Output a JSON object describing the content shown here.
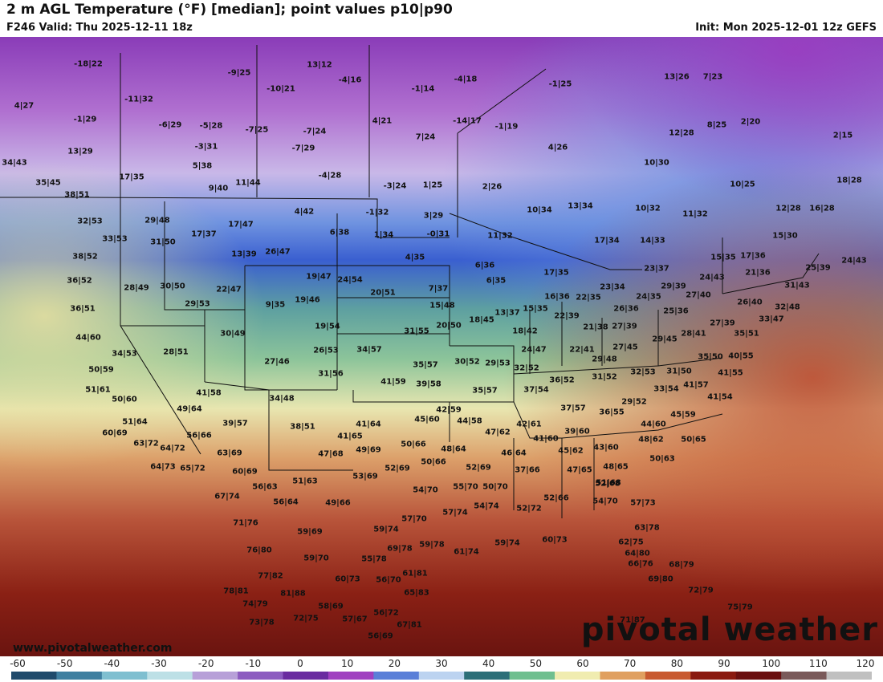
{
  "header": {
    "title": "2 m AGL Temperature (°F) [median]; point values p10|p90",
    "valid": "F246 Valid: Thu 2025-12-11 18z",
    "init": "Init: Mon 2025-12-01 12z GEFS"
  },
  "branding": {
    "site": "www.pivotalweather.com",
    "logo": "pivotal weather"
  },
  "legend": {
    "ticks": [
      "-60",
      "-50",
      "-40",
      "-30",
      "-20",
      "-10",
      "0",
      "10",
      "20",
      "30",
      "40",
      "50",
      "60",
      "70",
      "80",
      "90",
      "100",
      "110",
      "120"
    ],
    "colors": [
      "#1f4a6b",
      "#3f7fa0",
      "#7fbfd0",
      "#bde0e6",
      "#b7a0d8",
      "#8c5cc0",
      "#6a2ca0",
      "#a040c0",
      "#5a7fd8",
      "#bcd3f0",
      "#2c6f78",
      "#6fbf8f",
      "#f0ecb0",
      "#e0a060",
      "#c85a30",
      "#8a1a10",
      "#6a1010",
      "#7a5a5a",
      "#c0c0c0"
    ]
  },
  "points": [
    {
      "label": "-18|22"
    },
    {
      "label": "-9|25"
    },
    {
      "label": "13|12"
    },
    {
      "label": "-4|16"
    },
    {
      "label": "-1|14"
    },
    {
      "label": "-4|18"
    },
    {
      "label": "-1|25"
    },
    {
      "label": "13|26"
    },
    {
      "label": "7|23"
    },
    {
      "label": "4|27"
    },
    {
      "label": "-11|32"
    },
    {
      "label": "-10|21"
    },
    {
      "label": "-1|29"
    },
    {
      "label": "-6|29"
    },
    {
      "label": "-5|28"
    },
    {
      "label": "-7|25"
    },
    {
      "label": "-7|24"
    },
    {
      "label": "4|21"
    },
    {
      "label": "-14|17"
    },
    {
      "label": "-1|19"
    },
    {
      "label": "12|28"
    },
    {
      "label": "8|25"
    },
    {
      "label": "2|20"
    },
    {
      "label": "2|15"
    },
    {
      "label": "13|29"
    },
    {
      "label": "-3|31"
    },
    {
      "label": "-7|29"
    },
    {
      "label": "7|24"
    },
    {
      "label": "4|26"
    },
    {
      "label": "34|43"
    },
    {
      "label": "5|38"
    },
    {
      "label": "10|30"
    },
    {
      "label": "17|35"
    },
    {
      "label": "-4|28"
    },
    {
      "label": "35|45"
    },
    {
      "label": "11|44"
    },
    {
      "label": "9|40"
    },
    {
      "label": "-3|24"
    },
    {
      "label": "1|25"
    },
    {
      "label": "2|26"
    },
    {
      "label": "10|25"
    },
    {
      "label": "18|28"
    },
    {
      "label": "38|51"
    },
    {
      "label": "4|42"
    },
    {
      "label": "-1|32"
    },
    {
      "label": "3|29"
    },
    {
      "label": "10|34"
    },
    {
      "label": "13|34"
    },
    {
      "label": "10|32"
    },
    {
      "label": "11|32"
    },
    {
      "label": "12|28"
    },
    {
      "label": "16|28"
    },
    {
      "label": "32|53"
    },
    {
      "label": "29|48"
    },
    {
      "label": "17|47"
    },
    {
      "label": "6|38"
    },
    {
      "label": "1|34"
    },
    {
      "label": "-0|31"
    },
    {
      "label": "11|32"
    },
    {
      "label": "17|34"
    },
    {
      "label": "14|33"
    },
    {
      "label": "15|30"
    },
    {
      "label": "33|53"
    },
    {
      "label": "31|50"
    },
    {
      "label": "17|37"
    },
    {
      "label": "26|47"
    },
    {
      "label": "13|39"
    },
    {
      "label": "4|35"
    },
    {
      "label": "15|35"
    },
    {
      "label": "17|36"
    },
    {
      "label": "38|52"
    },
    {
      "label": "6|36"
    },
    {
      "label": "23|37"
    },
    {
      "label": "21|36"
    },
    {
      "label": "25|39"
    },
    {
      "label": "24|43"
    },
    {
      "label": "36|52"
    },
    {
      "label": "28|49"
    },
    {
      "label": "30|50"
    },
    {
      "label": "22|47"
    },
    {
      "label": "19|47"
    },
    {
      "label": "24|54"
    },
    {
      "label": "6|35"
    },
    {
      "label": "17|35"
    },
    {
      "label": "23|34"
    },
    {
      "label": "29|39"
    },
    {
      "label": "24|43"
    },
    {
      "label": "31|43"
    },
    {
      "label": "9|35"
    },
    {
      "label": "19|46"
    },
    {
      "label": "20|51"
    },
    {
      "label": "7|37"
    },
    {
      "label": "16|36"
    },
    {
      "label": "22|35"
    },
    {
      "label": "24|35"
    },
    {
      "label": "27|40"
    },
    {
      "label": "26|40"
    },
    {
      "label": "32|48"
    },
    {
      "label": "36|51"
    },
    {
      "label": "29|53"
    },
    {
      "label": "15|48"
    },
    {
      "label": "13|37"
    },
    {
      "label": "15|35"
    },
    {
      "label": "22|39"
    },
    {
      "label": "26|36"
    },
    {
      "label": "25|36"
    },
    {
      "label": "27|39"
    },
    {
      "label": "33|47"
    },
    {
      "label": "44|60"
    },
    {
      "label": "30|49"
    },
    {
      "label": "19|54"
    },
    {
      "label": "31|55"
    },
    {
      "label": "20|50"
    },
    {
      "label": "18|45"
    },
    {
      "label": "18|42"
    },
    {
      "label": "21|38"
    },
    {
      "label": "27|39"
    },
    {
      "label": "28|41"
    },
    {
      "label": "35|51"
    },
    {
      "label": "34|53"
    },
    {
      "label": "28|51"
    },
    {
      "label": "26|53"
    },
    {
      "label": "34|57"
    },
    {
      "label": "24|47"
    },
    {
      "label": "22|41"
    },
    {
      "label": "27|45"
    },
    {
      "label": "29|45"
    },
    {
      "label": "27|46"
    },
    {
      "label": "35|57"
    },
    {
      "label": "30|52"
    },
    {
      "label": "29|53"
    },
    {
      "label": "29|48"
    },
    {
      "label": "35|50"
    },
    {
      "label": "40|55"
    },
    {
      "label": "50|59"
    },
    {
      "label": "31|56"
    },
    {
      "label": "32|52"
    },
    {
      "label": "32|53"
    },
    {
      "label": "31|50"
    },
    {
      "label": "41|55"
    },
    {
      "label": "41|59"
    },
    {
      "label": "39|58"
    },
    {
      "label": "36|52"
    },
    {
      "label": "31|52"
    },
    {
      "label": "41|57"
    },
    {
      "label": "51|61"
    },
    {
      "label": "41|58"
    },
    {
      "label": "35|57"
    },
    {
      "label": "37|54"
    },
    {
      "label": "33|54"
    },
    {
      "label": "50|60"
    },
    {
      "label": "34|48"
    },
    {
      "label": "29|52"
    },
    {
      "label": "41|54"
    },
    {
      "label": "49|64"
    },
    {
      "label": "42|59"
    },
    {
      "label": "37|57"
    },
    {
      "label": "36|55"
    },
    {
      "label": "45|59"
    },
    {
      "label": "51|64"
    },
    {
      "label": "39|57"
    },
    {
      "label": "41|64"
    },
    {
      "label": "45|60"
    },
    {
      "label": "44|58"
    },
    {
      "label": "42|61"
    },
    {
      "label": "44|60"
    },
    {
      "label": "60|69"
    },
    {
      "label": "56|66"
    },
    {
      "label": "38|51"
    },
    {
      "label": "47|62"
    },
    {
      "label": "39|60"
    },
    {
      "label": "41|60"
    },
    {
      "label": "63|72"
    },
    {
      "label": "41|65"
    },
    {
      "label": "50|66"
    },
    {
      "label": "48|62"
    },
    {
      "label": "50|65"
    },
    {
      "label": "64|72"
    },
    {
      "label": "63|69"
    },
    {
      "label": "47|68"
    },
    {
      "label": "49|69"
    },
    {
      "label": "48|64"
    },
    {
      "label": "46|64"
    },
    {
      "label": "45|62"
    },
    {
      "label": "43|60"
    },
    {
      "label": "64|73"
    },
    {
      "label": "65|72"
    },
    {
      "label": "60|69"
    },
    {
      "label": "50|66"
    },
    {
      "label": "52|69"
    },
    {
      "label": "37|66"
    },
    {
      "label": "47|65"
    },
    {
      "label": "48|65"
    },
    {
      "label": "50|63"
    },
    {
      "label": "53|69"
    },
    {
      "label": "52|69"
    },
    {
      "label": "51|68"
    },
    {
      "label": "56|63"
    },
    {
      "label": "51|63"
    },
    {
      "label": "54|70"
    },
    {
      "label": "55|70"
    },
    {
      "label": "50|70"
    },
    {
      "label": "52|68"
    },
    {
      "label": "67|74"
    },
    {
      "label": "56|64"
    },
    {
      "label": "49|66"
    },
    {
      "label": "54|74"
    },
    {
      "label": "52|66"
    },
    {
      "label": "54|70"
    },
    {
      "label": "57|73"
    },
    {
      "label": "57|74"
    },
    {
      "label": "52|72"
    },
    {
      "label": "71|76"
    },
    {
      "label": "57|70"
    },
    {
      "label": "63|78"
    },
    {
      "label": "59|69"
    },
    {
      "label": "59|74"
    },
    {
      "label": "60|73"
    },
    {
      "label": "62|75"
    },
    {
      "label": "76|80"
    },
    {
      "label": "69|78"
    },
    {
      "label": "59|78"
    },
    {
      "label": "61|74"
    },
    {
      "label": "59|74"
    },
    {
      "label": "64|80"
    },
    {
      "label": "59|70"
    },
    {
      "label": "55|78"
    },
    {
      "label": "66|76"
    },
    {
      "label": "68|79"
    },
    {
      "label": "77|82"
    },
    {
      "label": "60|73"
    },
    {
      "label": "56|70"
    },
    {
      "label": "61|81"
    },
    {
      "label": "69|80"
    },
    {
      "label": "78|81"
    },
    {
      "label": "81|88"
    },
    {
      "label": "65|83"
    },
    {
      "label": "72|79"
    },
    {
      "label": "74|79"
    },
    {
      "label": "58|69"
    },
    {
      "label": "56|72"
    },
    {
      "label": "75|79"
    },
    {
      "label": "73|78"
    },
    {
      "label": "72|75"
    },
    {
      "label": "57|67"
    },
    {
      "label": "67|81"
    },
    {
      "label": "71|87"
    },
    {
      "label": "56|69"
    }
  ]
}
